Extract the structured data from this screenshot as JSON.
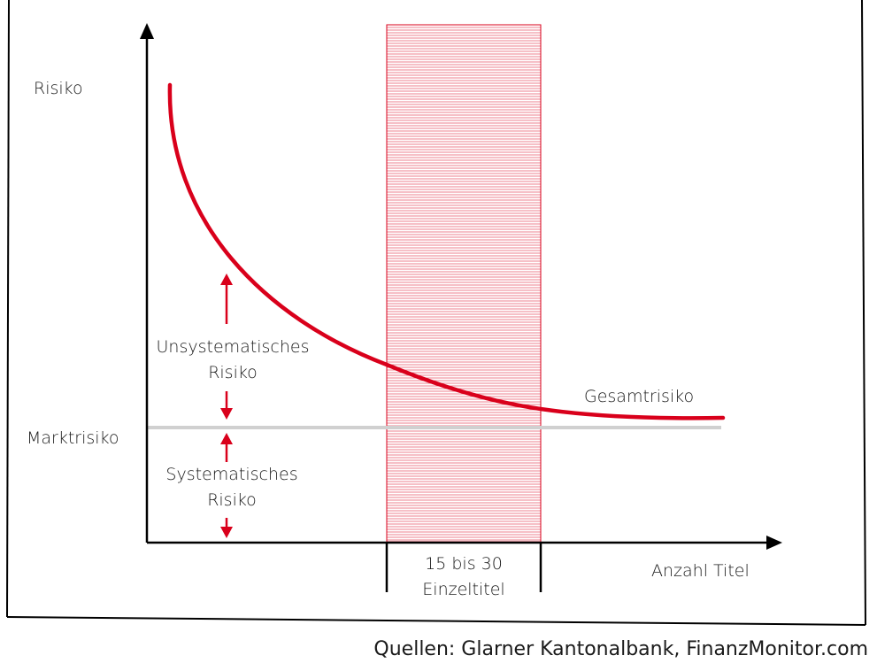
{
  "diagram": {
    "y_axis_label": "Risiko",
    "x_axis_label": "Anzahl Titel",
    "market_line_label": "Marktrisiko",
    "curve_label": "Gesamtrisiko",
    "unsystematic_label": [
      "Unsystematisches",
      "Risiko"
    ],
    "systematic_label": [
      "Systematisches",
      "Risiko"
    ],
    "band_label": [
      "15 bis 30",
      "Einzeltitel"
    ],
    "source": "Quellen: Glarner Kantonalbank, FinanzMonitor.com",
    "colors": {
      "accent": "#d9001b",
      "market_line": "#d0d0d0",
      "axis": "#000000",
      "frame": "#000000"
    }
  }
}
